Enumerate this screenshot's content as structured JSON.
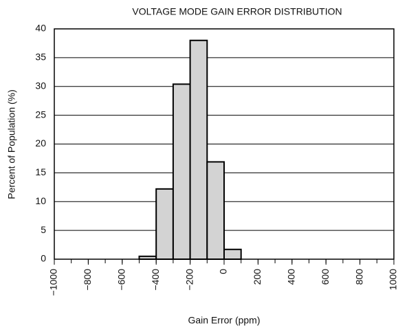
{
  "chart_data": {
    "type": "histogram",
    "title": "VOLTAGE  MODE GAIN ERROR DISTRIBUTION",
    "xlabel": "Gain Error (ppm)",
    "ylabel": "Percent of Population (%)",
    "bins": [
      -1000,
      -900,
      -800,
      -700,
      -600,
      -500,
      -400,
      -300,
      -200,
      -100,
      0,
      100,
      200,
      300,
      400,
      500,
      600,
      700,
      800,
      900,
      1000
    ],
    "values": [
      0,
      0,
      0,
      0,
      0,
      0.5,
      12.2,
      30.4,
      38,
      16.9,
      1.7,
      0,
      0,
      0,
      0,
      0,
      0,
      0,
      0,
      0
    ],
    "color": "#d3d3d3",
    "xlim": [
      -1000,
      1000
    ],
    "xticks": [
      {
        "value": -1000,
        "label": "−1000"
      },
      {
        "value": -800,
        "label": "−800"
      },
      {
        "value": -600,
        "label": "−600"
      },
      {
        "value": -400,
        "label": "−400"
      },
      {
        "value": -200,
        "label": "−200"
      },
      0,
      200,
      400,
      600,
      800,
      1000
    ],
    "ylim": [
      0,
      40
    ],
    "yticks": [
      0,
      5,
      10,
      15,
      20,
      25,
      30,
      35,
      40
    ],
    "grid": true
  }
}
